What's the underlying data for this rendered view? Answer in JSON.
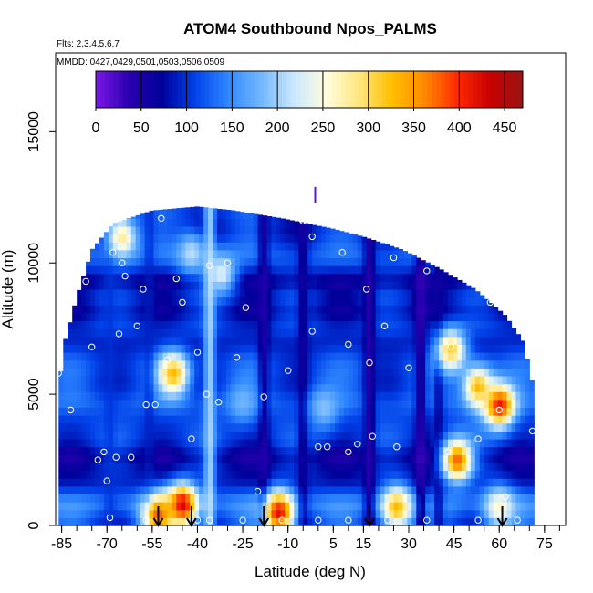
{
  "chart_data": {
    "type": "heatmap",
    "title": "ATOM4 Southbound Npos_PALMS",
    "flights_label": "Flts: 2,3,4,5,6,7",
    "dates_label": "MMDD: 0427,0429,0501,0503,0506,0509",
    "xlabel": "Latitude (deg N)",
    "ylabel": "Altitude (m)",
    "xlim": [
      -87,
      82
    ],
    "ylim": [
      0,
      18000
    ],
    "x_ticks": [
      -85,
      -70,
      -55,
      -40,
      -25,
      -10,
      5,
      15,
      30,
      45,
      60,
      75
    ],
    "x_tick_labels": [
      "-85",
      "-70",
      "-55",
      "-40",
      "-25",
      "-10",
      "5",
      "15",
      "30",
      "45",
      "60",
      "75"
    ],
    "x_minor_step": 5,
    "y_ticks": [
      0,
      5000,
      10000,
      15000
    ],
    "y_tick_labels": [
      "0",
      "5000",
      "10000",
      "15000"
    ],
    "colorbar": {
      "range": [
        0,
        470
      ],
      "ticks": [
        0,
        50,
        100,
        150,
        200,
        250,
        300,
        350,
        400,
        450
      ],
      "tick_labels": [
        "0",
        "50",
        "100",
        "150",
        "200",
        "250",
        "300",
        "350",
        "400",
        "450"
      ],
      "stops": [
        "#7c18e8",
        "#2a00b0",
        "#00009a",
        "#0040e8",
        "#2f86ff",
        "#6fb6ff",
        "#c8e6ff",
        "#fffde0",
        "#ffe680",
        "#ffc000",
        "#ff8a00",
        "#ff2a00",
        "#c80000",
        "#9a1414"
      ]
    },
    "dome": [
      [
        -86,
        5200
      ],
      [
        -84,
        7000
      ],
      [
        -80,
        8700
      ],
      [
        -75,
        10500
      ],
      [
        -68,
        11500
      ],
      [
        -55,
        12000
      ],
      [
        -40,
        12150
      ],
      [
        -28,
        12000
      ],
      [
        -12,
        11700
      ],
      [
        5,
        11300
      ],
      [
        15,
        11000
      ],
      [
        28,
        10500
      ],
      [
        40,
        9800
      ],
      [
        52,
        9000
      ],
      [
        62,
        8000
      ],
      [
        68,
        7000
      ],
      [
        71,
        5400
      ],
      [
        72,
        3000
      ],
      [
        72,
        0
      ]
    ],
    "columns": [
      {
        "lat": -69,
        "value": 100
      },
      {
        "lat": -56,
        "value": 90
      },
      {
        "lat": -36,
        "value": 220
      },
      {
        "lat": -18,
        "value": 40
      },
      {
        "lat": -5,
        "value": 50
      },
      {
        "lat": 17,
        "value": 30
      },
      {
        "lat": 34,
        "value": 20
      },
      {
        "lat": 40,
        "value": 60
      }
    ],
    "hotspots": [
      {
        "lat": 60,
        "alt": 4600,
        "value": 420
      },
      {
        "lat": 53,
        "alt": 5300,
        "value": 330
      },
      {
        "lat": 46,
        "alt": 2500,
        "value": 380
      },
      {
        "lat": 44,
        "alt": 6700,
        "value": 310
      },
      {
        "lat": -13,
        "alt": 500,
        "value": 420
      },
      {
        "lat": -45,
        "alt": 800,
        "value": 430
      },
      {
        "lat": -53,
        "alt": 400,
        "value": 380
      },
      {
        "lat": 26,
        "alt": 700,
        "value": 330
      },
      {
        "lat": 60,
        "alt": 700,
        "value": 260
      },
      {
        "lat": -48,
        "alt": 5800,
        "value": 330
      },
      {
        "lat": -65,
        "alt": 11000,
        "value": 280
      },
      {
        "lat": -32,
        "alt": 9600,
        "value": 230
      },
      {
        "lat": -42,
        "alt": 10400,
        "value": 210
      },
      {
        "lat": 2,
        "alt": 4500,
        "value": 190
      },
      {
        "lat": -25,
        "alt": 4700,
        "value": 180
      }
    ],
    "bands": [
      {
        "alt": 800,
        "value": 170
      },
      {
        "alt": 1800,
        "value": 70
      },
      {
        "alt": 2600,
        "value": 40
      },
      {
        "alt": 3500,
        "value": 110
      },
      {
        "alt": 4700,
        "value": 140
      },
      {
        "alt": 6000,
        "value": 120
      },
      {
        "alt": 7000,
        "value": 80
      },
      {
        "alt": 8200,
        "value": 60
      },
      {
        "alt": 9300,
        "value": 40
      },
      {
        "alt": 10300,
        "value": 140
      },
      {
        "alt": 11300,
        "value": 90
      }
    ],
    "sample_points": [
      [
        -86,
        5800
      ],
      [
        -82,
        4400
      ],
      [
        -80,
        9600
      ],
      [
        -77,
        9300
      ],
      [
        -75,
        6800
      ],
      [
        -73,
        2500
      ],
      [
        -71,
        2800
      ],
      [
        -70,
        1700
      ],
      [
        -69,
        300
      ],
      [
        -68,
        10400
      ],
      [
        -67,
        2600
      ],
      [
        -66,
        7300
      ],
      [
        -65,
        10000
      ],
      [
        -64,
        9500
      ],
      [
        -62,
        2600
      ],
      [
        -60,
        7600
      ],
      [
        -58,
        9000
      ],
      [
        -57,
        4600
      ],
      [
        -54,
        4600
      ],
      [
        -52,
        11700
      ],
      [
        -50,
        6300
      ],
      [
        -47,
        9400
      ],
      [
        -45,
        8500
      ],
      [
        -42,
        3300
      ],
      [
        -40,
        6600
      ],
      [
        -37,
        5000
      ],
      [
        -36,
        9900
      ],
      [
        -33,
        4700
      ],
      [
        -30,
        10000
      ],
      [
        -27,
        6400
      ],
      [
        -24,
        8300
      ],
      [
        -20,
        1300
      ],
      [
        -18,
        4900
      ],
      [
        -10,
        5900
      ],
      [
        -5,
        11600
      ],
      [
        -2,
        11000
      ],
      [
        -2,
        7400
      ],
      [
        0,
        3000
      ],
      [
        3,
        3000
      ],
      [
        8,
        10400
      ],
      [
        10,
        2800
      ],
      [
        10,
        6900
      ],
      [
        13,
        3100
      ],
      [
        16,
        9000
      ],
      [
        17,
        6200
      ],
      [
        17,
        11600
      ],
      [
        18,
        3400
      ],
      [
        22,
        7600
      ],
      [
        25,
        10200
      ],
      [
        26,
        3000
      ],
      [
        30,
        6000
      ],
      [
        36,
        9700
      ],
      [
        43,
        2800
      ],
      [
        44,
        6800
      ],
      [
        48,
        9600
      ],
      [
        53,
        3300
      ],
      [
        57,
        8500
      ],
      [
        60,
        4400
      ],
      [
        71,
        3600
      ],
      [
        71,
        7300
      ],
      [
        62,
        1100
      ],
      [
        -36,
        200
      ],
      [
        -57,
        200
      ],
      [
        -40,
        200
      ],
      [
        -25,
        200
      ],
      [
        -12,
        200
      ],
      [
        0,
        200
      ],
      [
        10,
        200
      ],
      [
        23,
        200
      ],
      [
        36,
        200
      ],
      [
        53,
        200
      ],
      [
        66,
        200
      ],
      [
        73,
        200
      ]
    ],
    "arrow_lats": [
      -53,
      -42,
      -18,
      17,
      61
    ],
    "top_marker": {
      "lat": -1,
      "alt": 12300,
      "value": 10
    }
  }
}
